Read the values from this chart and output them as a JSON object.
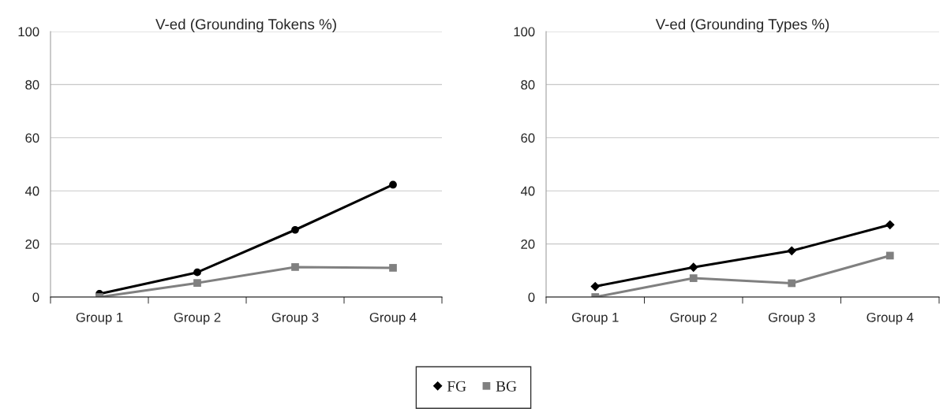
{
  "chart_data": [
    {
      "type": "line",
      "title": "V-ed (Grounding Tokens %)",
      "categories": [
        "Group 1",
        "Group 2",
        "Group 3",
        "Group 4"
      ],
      "ylim": [
        0,
        100
      ],
      "yticks": [
        0,
        20,
        40,
        60,
        80,
        100
      ],
      "grid": "y",
      "legend": "bottom",
      "series": [
        {
          "name": "FG",
          "color": "#000000",
          "marker": "circle",
          "values": [
            1.2,
            9.3,
            25.3,
            42.3
          ]
        },
        {
          "name": "BG",
          "color": "#808080",
          "marker": "square",
          "values": [
            0,
            5.3,
            11.3,
            11.0
          ]
        }
      ]
    },
    {
      "type": "line",
      "title": "V-ed (Grounding Types %)",
      "categories": [
        "Group 1",
        "Group 2",
        "Group 3",
        "Group 4"
      ],
      "ylim": [
        0,
        100
      ],
      "yticks": [
        0,
        20,
        40,
        60,
        80,
        100
      ],
      "grid": "y",
      "legend": "bottom",
      "series": [
        {
          "name": "FG",
          "color": "#000000",
          "marker": "diamond",
          "values": [
            4.0,
            11.2,
            17.4,
            27.2
          ]
        },
        {
          "name": "BG",
          "color": "#808080",
          "marker": "square",
          "values": [
            0,
            7.1,
            5.2,
            15.6
          ]
        }
      ]
    }
  ]
}
